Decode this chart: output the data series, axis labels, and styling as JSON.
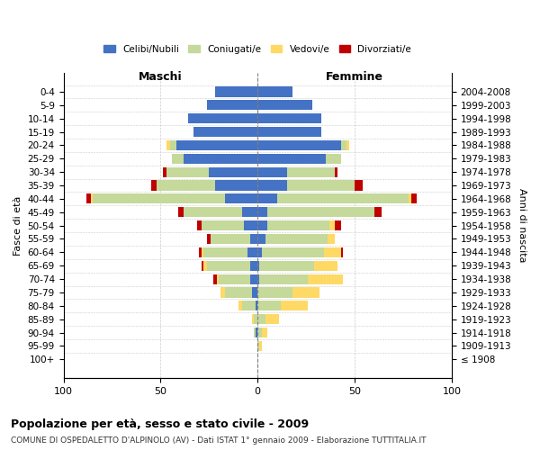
{
  "age_groups": [
    "100+",
    "95-99",
    "90-94",
    "85-89",
    "80-84",
    "75-79",
    "70-74",
    "65-69",
    "60-64",
    "55-59",
    "50-54",
    "45-49",
    "40-44",
    "35-39",
    "30-34",
    "25-29",
    "20-24",
    "15-19",
    "10-14",
    "5-9",
    "0-4"
  ],
  "birth_years": [
    "≤ 1908",
    "1909-1913",
    "1914-1918",
    "1919-1923",
    "1924-1928",
    "1929-1933",
    "1934-1938",
    "1939-1943",
    "1944-1948",
    "1949-1953",
    "1954-1958",
    "1959-1963",
    "1964-1968",
    "1969-1973",
    "1974-1978",
    "1979-1983",
    "1984-1988",
    "1989-1993",
    "1994-1998",
    "1999-2003",
    "2004-2008"
  ],
  "males": {
    "celibe": [
      0,
      0,
      1,
      0,
      1,
      3,
      4,
      4,
      5,
      4,
      7,
      8,
      17,
      22,
      25,
      38,
      42,
      33,
      36,
      26,
      22
    ],
    "coniugato": [
      0,
      0,
      1,
      2,
      7,
      14,
      16,
      22,
      23,
      20,
      22,
      30,
      68,
      30,
      22,
      6,
      3,
      0,
      0,
      0,
      0
    ],
    "vedovo": [
      0,
      0,
      0,
      1,
      2,
      2,
      1,
      2,
      1,
      0,
      0,
      0,
      1,
      0,
      0,
      0,
      2,
      0,
      0,
      0,
      0
    ],
    "divorziato": [
      0,
      0,
      0,
      0,
      0,
      0,
      2,
      1,
      1,
      2,
      2,
      3,
      2,
      3,
      2,
      0,
      0,
      0,
      0,
      0,
      0
    ]
  },
  "females": {
    "nubile": [
      0,
      0,
      0,
      0,
      0,
      0,
      1,
      1,
      2,
      4,
      5,
      5,
      10,
      15,
      15,
      35,
      43,
      33,
      33,
      28,
      18
    ],
    "coniugata": [
      0,
      1,
      2,
      4,
      12,
      18,
      25,
      28,
      32,
      32,
      32,
      55,
      68,
      35,
      25,
      8,
      3,
      0,
      0,
      0,
      0
    ],
    "vedova": [
      0,
      1,
      3,
      7,
      14,
      14,
      18,
      12,
      9,
      4,
      3,
      0,
      1,
      0,
      0,
      0,
      1,
      0,
      0,
      0,
      0
    ],
    "divorziata": [
      0,
      0,
      0,
      0,
      0,
      0,
      0,
      0,
      1,
      0,
      3,
      4,
      3,
      4,
      1,
      0,
      0,
      0,
      0,
      0,
      0
    ]
  },
  "colors": {
    "celibe": "#4472C4",
    "coniugato": "#C5D99B",
    "vedovo": "#FFD966",
    "divorziato": "#C00000"
  },
  "title": "Popolazione per età, sesso e stato civile - 2009",
  "subtitle": "COMUNE DI OSPEDALETTO D'ALPINOLO (AV) - Dati ISTAT 1° gennaio 2009 - Elaborazione TUTTITALIA.IT",
  "xlabel_left": "Maschi",
  "xlabel_right": "Femmine",
  "ylabel_left": "Fasce di età",
  "ylabel_right": "Anni di nascita",
  "xlim": 100,
  "xticks": [
    100,
    50,
    0,
    50,
    100
  ],
  "xticklabels": [
    "100",
    "50",
    "0",
    "50",
    "100"
  ],
  "legend_labels": [
    "Celibi/Nubili",
    "Coniugati/e",
    "Vedovi/e",
    "Divorziati/e"
  ],
  "background_color": "#ffffff",
  "grid_color": "#cccccc"
}
